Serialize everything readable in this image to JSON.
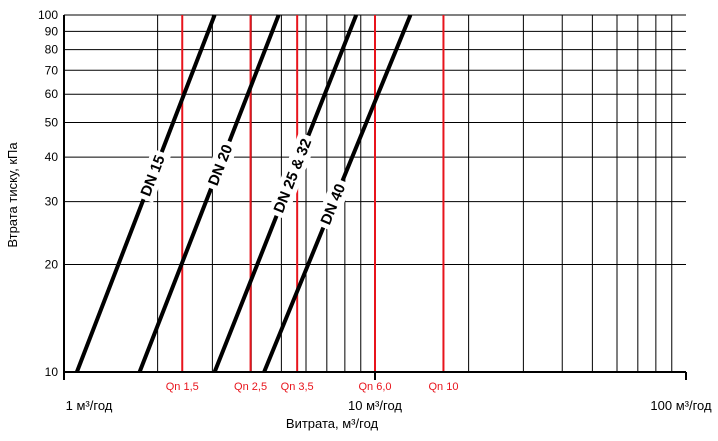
{
  "chart_data": {
    "type": "line",
    "xlabel": "Витрата, м³/год",
    "ylabel": "Втрата тиску, кПа",
    "x_scale": "log",
    "y_scale": "log",
    "xlim": [
      1,
      100
    ],
    "ylim": [
      10,
      100
    ],
    "grid": true,
    "x_tick_labels": [
      {
        "value": 1,
        "label": "1 м³/год"
      },
      {
        "value": 10,
        "label": "10 м³/год"
      },
      {
        "value": 100,
        "label": "100 м³/год"
      }
    ],
    "y_tick_labels": [
      10,
      20,
      30,
      40,
      50,
      60,
      70,
      80,
      90,
      100
    ],
    "series": [
      {
        "name": "DN 15",
        "x": [
          1.1,
          3.05
        ],
        "y": [
          10,
          100
        ]
      },
      {
        "name": "DN 20",
        "x": [
          1.75,
          4.9
        ],
        "y": [
          10,
          100
        ]
      },
      {
        "name": "DN 25 & 32",
        "x": [
          3.05,
          8.7
        ],
        "y": [
          10,
          100
        ]
      },
      {
        "name": "DN 40",
        "x": [
          4.4,
          13.0
        ],
        "y": [
          10,
          100
        ]
      }
    ],
    "reference_lines": [
      {
        "label": "Qn 1,5",
        "x": 2.4
      },
      {
        "label": "Qn 2,5",
        "x": 3.98
      },
      {
        "label": "Qn 3,5",
        "x": 5.62
      },
      {
        "label": "Qn 6,0",
        "x": 10.0
      },
      {
        "label": "Qn 10",
        "x": 16.6
      }
    ],
    "colors": {
      "series": "#000000",
      "reference": "#e8141c",
      "grid": "#000000"
    }
  }
}
